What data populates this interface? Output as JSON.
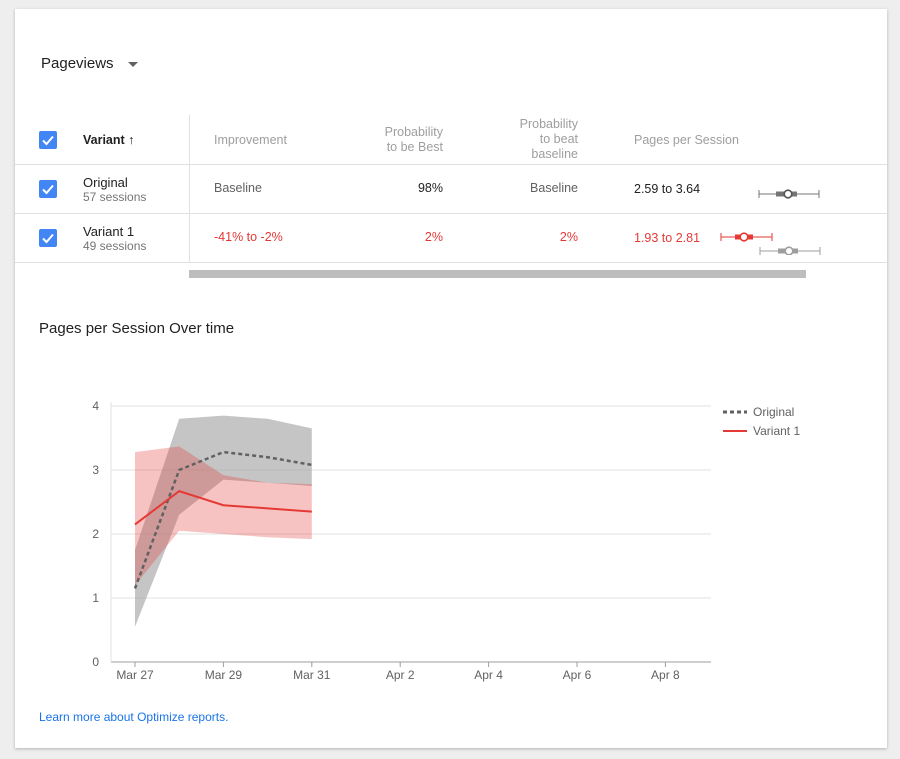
{
  "metric_selector": {
    "label": "Pageviews"
  },
  "table": {
    "headers": {
      "variant": "Variant",
      "sort_arrow": "↑",
      "improvement": "Improvement",
      "prob_best_line1": "Probability",
      "prob_best_line2": "to be Best",
      "prob_beat_line1": "Probability",
      "prob_beat_line2": "to beat",
      "prob_beat_line3": "baseline",
      "metric": "Pages per Session"
    },
    "rows": [
      {
        "name": "Original",
        "sessions": "57 sessions",
        "improvement": "Baseline",
        "prob_best": "98%",
        "prob_beat": "Baseline",
        "range": "2.59 to 3.64"
      },
      {
        "name": "Variant 1",
        "sessions": "49 sessions",
        "improvement": "-41% to -2%",
        "prob_best": "2%",
        "prob_beat": "2%",
        "range": "1.93 to 2.81"
      }
    ]
  },
  "chart_title": "Pages per Session Over time",
  "chart_data": {
    "type": "line",
    "x": [
      "Mar 27",
      "Mar 28",
      "Mar 29",
      "Mar 30",
      "Mar 31"
    ],
    "x_ticks": [
      "Mar 27",
      "Mar 29",
      "Mar 31",
      "Apr 2",
      "Apr 4",
      "Apr 6",
      "Apr 8"
    ],
    "ylim": [
      0,
      4
    ],
    "y_ticks": [
      0,
      1,
      2,
      3,
      4
    ],
    "legend_position": "top-right",
    "series": [
      {
        "name": "Original",
        "style": "dashed",
        "color": "#616161",
        "values": [
          1.15,
          3.0,
          3.28,
          3.2,
          3.08
        ],
        "lower": [
          0.55,
          2.3,
          2.85,
          2.8,
          2.75
        ],
        "upper": [
          1.75,
          3.8,
          3.85,
          3.8,
          3.65
        ]
      },
      {
        "name": "Variant 1",
        "style": "solid",
        "color": "#e53935",
        "values": [
          2.15,
          2.67,
          2.45,
          2.4,
          2.35
        ],
        "lower": [
          1.2,
          2.05,
          2.0,
          1.95,
          1.92
        ],
        "upper": [
          3.28,
          3.37,
          2.92,
          2.8,
          2.78
        ]
      }
    ]
  },
  "learn_more": "Learn more about Optimize reports."
}
